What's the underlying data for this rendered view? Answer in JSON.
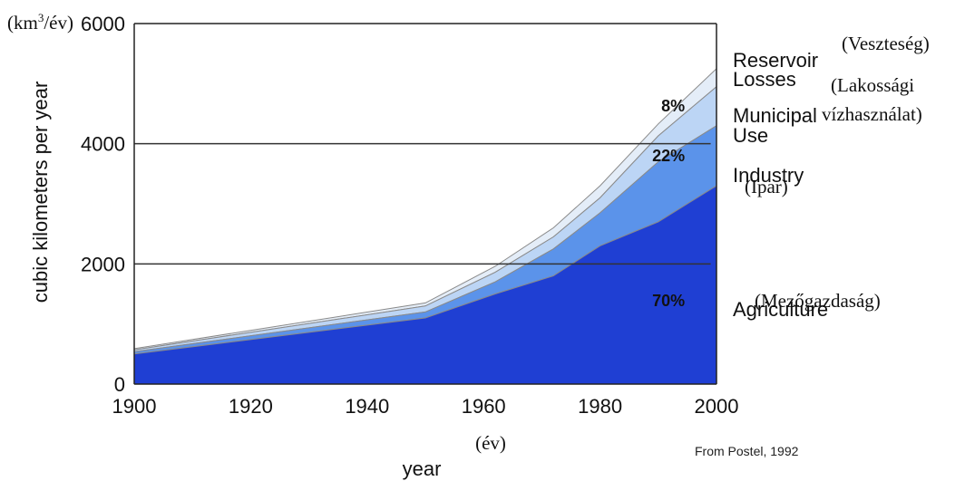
{
  "chart_data": {
    "type": "area",
    "stacked": true,
    "source": "From Postel, 1992",
    "xlabel": "year",
    "xlabel_hu": "(év)",
    "ylabel": "cubic kilometers per year",
    "ylabel_unit_prefix": "(km",
    "ylabel_unit_sup": "3",
    "ylabel_unit_suffix": "/év)",
    "xlim": [
      1900,
      2000
    ],
    "ylim": [
      0,
      6000
    ],
    "x_ticks": [
      "1900",
      "1920",
      "1940",
      "1960",
      "1980",
      "2000"
    ],
    "y_ticks": [
      "0",
      "2000",
      "4000",
      "6000"
    ],
    "gridlines": [
      2000,
      4000
    ],
    "x": [
      1900,
      1950,
      1962,
      1972,
      1980,
      1990,
      2000
    ],
    "series": [
      {
        "name": "Agriculture",
        "name_hu": "(Mezőgazdaság)",
        "color": "#1f3fd3",
        "values": [
          500,
          1100,
          1500,
          1800,
          2300,
          2700,
          3300
        ]
      },
      {
        "name": "Industry",
        "name_hu": "(Ipar)",
        "color": "#5b93ea",
        "values": [
          40,
          100,
          200,
          450,
          550,
          1000,
          1000
        ]
      },
      {
        "name": "Municipal Use",
        "name_hu": "(Lakossági vízhasználat)",
        "color": "#bcd5f5",
        "values": [
          30,
          100,
          160,
          200,
          250,
          430,
          650
        ]
      },
      {
        "name": "Reservoir Losses",
        "name_hu": "(Veszteség)",
        "color": "#e4edf8",
        "values": [
          20,
          50,
          100,
          150,
          200,
          200,
          300
        ]
      }
    ],
    "annotations": [
      {
        "text": "70%",
        "series": "Agriculture"
      },
      {
        "text": "22%",
        "series": "Industry"
      },
      {
        "text": "8%",
        "series": "Municipal Use"
      }
    ]
  }
}
